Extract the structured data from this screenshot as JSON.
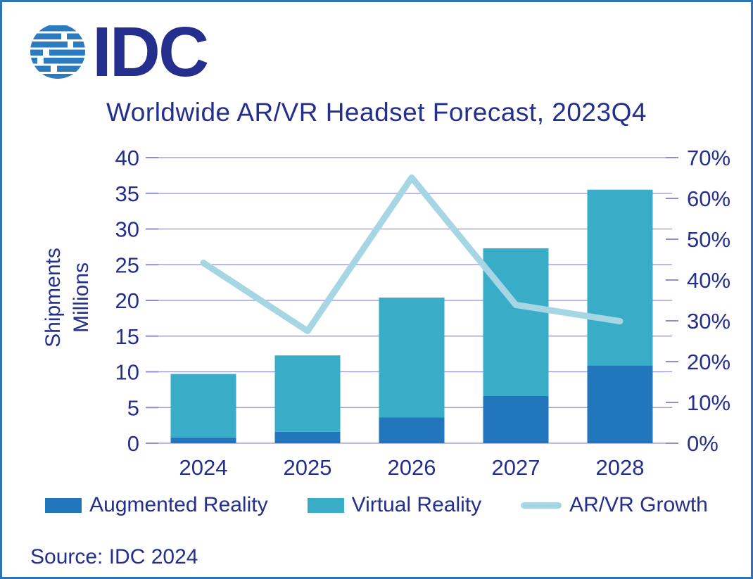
{
  "page": {
    "border_color": "#2E74B5",
    "background": "#FFFFFF",
    "text_color": "#242E8C"
  },
  "logo": {
    "text": "IDC",
    "color": "#2B7BBE"
  },
  "chart_data": {
    "type": "combo-stacked-bar-line",
    "title": "Worldwide AR/VR Headset Forecast, 2023Q4",
    "categories": [
      "2024",
      "2025",
      "2026",
      "2027",
      "2028"
    ],
    "series": [
      {
        "name": "Augmented Reality",
        "type": "bar",
        "color": "#2277BC",
        "values": [
          0.8,
          1.6,
          3.6,
          6.6,
          10.9
        ]
      },
      {
        "name": "Virtual Reality",
        "type": "bar",
        "color": "#39ADC8",
        "values": [
          8.9,
          10.7,
          16.8,
          20.7,
          24.6
        ]
      },
      {
        "name": "AR/VR Growth",
        "type": "line",
        "axis": "right",
        "color": "#A6D6E4",
        "values": [
          44.2,
          27.5,
          65.1,
          33.9,
          29.9
        ]
      }
    ],
    "stacked": true,
    "stack_totals_estimate": [
      9.7,
      12.3,
      20.4,
      27.3,
      35.5
    ],
    "left_axis": {
      "title_lines": [
        "Shipments",
        "Millions"
      ],
      "min": 0,
      "max": 40,
      "step": 5,
      "ticks": [
        "0",
        "5",
        "10",
        "15",
        "20",
        "25",
        "30",
        "35",
        "40"
      ]
    },
    "right_axis": {
      "min": 0,
      "max": 70,
      "step": 10,
      "ticks": [
        "0%",
        "10%",
        "20%",
        "30%",
        "40%",
        "50%",
        "60%",
        "70%"
      ]
    },
    "grid": true,
    "grid_color": "#8C8FD4",
    "legend_position": "bottom",
    "text_color": "#242E8C"
  },
  "source": {
    "label": "Source: IDC 2024"
  }
}
